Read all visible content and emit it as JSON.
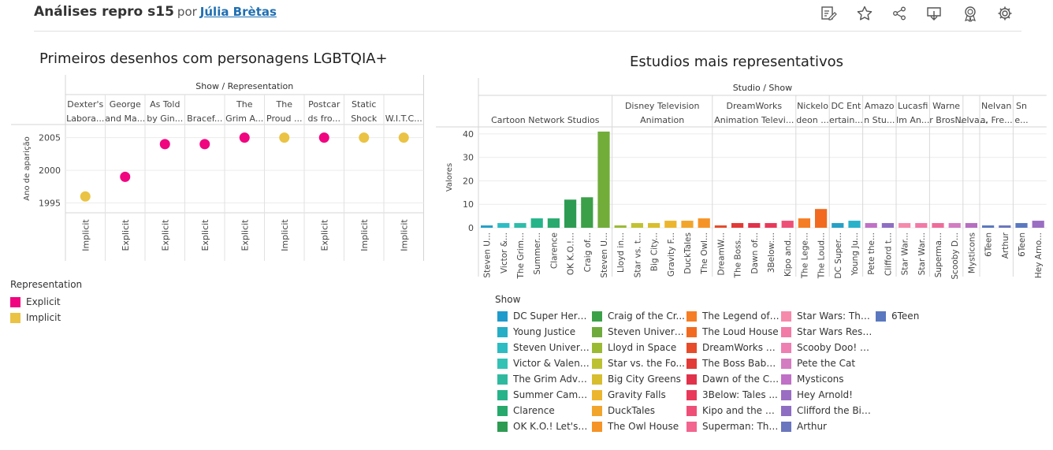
{
  "header": {
    "title": "Análises repro s15",
    "by": "por",
    "author": "Júlia Brètas"
  },
  "toolbar": {
    "icons": [
      "edit-icon",
      "star-icon",
      "share-icon",
      "download-icon",
      "badge-icon",
      "settings-icon"
    ]
  },
  "chart_data": [
    {
      "type": "scatter",
      "title": "Primeiros desenhos com personagens LGBTQIA+",
      "column_header": "Show / Representation",
      "ylabel": "Ano de aparição",
      "ylim": [
        1993.5,
        2007
      ],
      "yticks": [
        1995,
        2000,
        2005
      ],
      "grid": true,
      "columns": [
        {
          "show": [
            "Dexter's",
            "Labora..."
          ],
          "representation": "Implicit",
          "year": 1996
        },
        {
          "show": [
            "George",
            "and Ma..."
          ],
          "representation": "Explicit",
          "year": 1999
        },
        {
          "show": [
            "As Told",
            "by Gin..."
          ],
          "representation": "Explicit",
          "year": 2004
        },
        {
          "show": [
            "",
            "Bracef..."
          ],
          "representation": "Explicit",
          "year": 2004
        },
        {
          "show": [
            "The",
            "Grim A..."
          ],
          "representation": "Explicit",
          "year": 2005
        },
        {
          "show": [
            "The",
            "Proud ..."
          ],
          "representation": "Implicit",
          "year": 2005
        },
        {
          "show": [
            "Postcar",
            "ds fro..."
          ],
          "representation": "Explicit",
          "year": 2005
        },
        {
          "show": [
            "Static",
            "Shock"
          ],
          "representation": "Implicit",
          "year": 2005
        },
        {
          "show": [
            "",
            "W.I.T.C..."
          ],
          "representation": "Implicit",
          "year": 2005
        }
      ],
      "legend": {
        "title": "Representation",
        "items": [
          {
            "label": "Explicit",
            "color": "#f0047f"
          },
          {
            "label": "Implicit",
            "color": "#eac344"
          }
        ]
      }
    },
    {
      "type": "bar",
      "title": "Estudios mais representativos",
      "column_header": "Studio / Show",
      "ylabel": "Valores",
      "ylim": [
        0,
        43
      ],
      "yticks": [
        0,
        10,
        20,
        30,
        40
      ],
      "studios": [
        {
          "lines": [
            "",
            "Cartoon Network Studios"
          ],
          "count": 8
        },
        {
          "lines": [
            "Disney Television",
            "Animation"
          ],
          "count": 6
        },
        {
          "lines": [
            "DreamWorks",
            "Animation Televi..."
          ],
          "count": 5
        },
        {
          "lines": [
            "Nickelo",
            "deon ..."
          ],
          "count": 2
        },
        {
          "lines": [
            "DC Ent",
            "ertain..."
          ],
          "count": 2
        },
        {
          "lines": [
            "Amazo",
            "n Stu..."
          ],
          "count": 2
        },
        {
          "lines": [
            "Lucasfi",
            "lm An..."
          ],
          "count": 2
        },
        {
          "lines": [
            "Warne",
            "r Bros..."
          ],
          "count": 2
        },
        {
          "lines": [
            "",
            "Nelva..."
          ],
          "count": 1
        },
        {
          "lines": [
            "Nelvan",
            "a, Fre..."
          ],
          "count": 2
        },
        {
          "lines": [
            "Sn",
            "e..."
          ],
          "count": 1
        }
      ],
      "bars": [
        {
          "label": "Steven U...",
          "value": 1,
          "color": "#26a0c6"
        },
        {
          "label": "Victor &...",
          "value": 2,
          "color": "#2dbdc4"
        },
        {
          "label": "The Grim...",
          "value": 2,
          "color": "#2fbca9"
        },
        {
          "label": "Summer...",
          "value": 4,
          "color": "#25b48a"
        },
        {
          "label": "Clarence",
          "value": 4,
          "color": "#2aaa6e"
        },
        {
          "label": "OK K.O.!...",
          "value": 12,
          "color": "#2e9b53"
        },
        {
          "label": "Craig of...",
          "value": 13,
          "color": "#3ca048"
        },
        {
          "label": "Steven U...",
          "value": 41,
          "color": "#72ad3a"
        },
        {
          "label": "Lloyd in...",
          "value": 1,
          "color": "#9bba34"
        },
        {
          "label": "Star vs. t...",
          "value": 2,
          "color": "#c1c231"
        },
        {
          "label": "Big City...",
          "value": 2,
          "color": "#d9be2e"
        },
        {
          "label": "Gravity F...",
          "value": 3,
          "color": "#ecb52e"
        },
        {
          "label": "DuckTales",
          "value": 3,
          "color": "#f2a52b"
        },
        {
          "label": "The Owl...",
          "value": 4,
          "color": "#f59327"
        },
        {
          "label": "DreamW...",
          "value": 1,
          "color": "#e64b2a"
        },
        {
          "label": "The Boss...",
          "value": 2,
          "color": "#e23a36"
        },
        {
          "label": "Dawn of...",
          "value": 2,
          "color": "#e0324a"
        },
        {
          "label": "3Below:...",
          "value": 2,
          "color": "#e8395a"
        },
        {
          "label": "Kipo and...",
          "value": 3,
          "color": "#ee4f77"
        },
        {
          "label": "The Lege...",
          "value": 4,
          "color": "#f57d24"
        },
        {
          "label": "The Loud...",
          "value": 8,
          "color": "#f16a1f"
        },
        {
          "label": "DC Super...",
          "value": 2,
          "color": "#26a0c6"
        },
        {
          "label": "Young Ju...",
          "value": 3,
          "color": "#29b1c9"
        },
        {
          "label": "Pete the...",
          "value": 2,
          "color": "#c070c6"
        },
        {
          "label": "Clifford t...",
          "value": 2,
          "color": "#8e6ec2"
        },
        {
          "label": "Star War...",
          "value": 2,
          "color": "#f58aac"
        },
        {
          "label": "Star War...",
          "value": 2,
          "color": "#f27aa6"
        },
        {
          "label": "Superma...",
          "value": 2,
          "color": "#ee6c9a"
        },
        {
          "label": "Scooby D...",
          "value": 2,
          "color": "#d37cc2"
        },
        {
          "label": "Mysticons",
          "value": 2,
          "color": "#b66ec0"
        },
        {
          "label": "6Teen",
          "value": 1,
          "color": "#5a78bf"
        },
        {
          "label": "Arthur",
          "value": 1,
          "color": "#6a76bd"
        },
        {
          "label": "6Teen",
          "value": 2,
          "color": "#5a78bf"
        },
        {
          "label": "Hey Arno...",
          "value": 3,
          "color": "#9a6ec2"
        }
      ],
      "legend": {
        "title": "Show",
        "columns": [
          [
            {
              "label": "DC Super Hero ...",
              "color": "#1f9bcb"
            },
            {
              "label": "Young Justice",
              "color": "#25aec6"
            },
            {
              "label": "Steven Univers...",
              "color": "#2cbcc2"
            },
            {
              "label": "Victor & Valenti...",
              "color": "#34c2b5"
            },
            {
              "label": "The Grim Adve...",
              "color": "#2fbaa0"
            },
            {
              "label": "Summer Camp ...",
              "color": "#27b389"
            },
            {
              "label": "Clarence",
              "color": "#26a96a"
            },
            {
              "label": "OK K.O.! Let's B...",
              "color": "#2e9b53"
            }
          ],
          [
            {
              "label": "Craig of the Cr...",
              "color": "#3ca048"
            },
            {
              "label": "Steven Universe",
              "color": "#6fab3c"
            },
            {
              "label": "Lloyd in Space",
              "color": "#9bba34"
            },
            {
              "label": "Star vs. the Fo...",
              "color": "#bcc132"
            },
            {
              "label": "Big City Greens",
              "color": "#d6be2f"
            },
            {
              "label": "Gravity Falls",
              "color": "#ecb52e"
            },
            {
              "label": "DuckTales",
              "color": "#f2a52b"
            },
            {
              "label": "The Owl House",
              "color": "#f59327"
            }
          ],
          [
            {
              "label": "The Legend of ...",
              "color": "#f57d24"
            },
            {
              "label": "The Loud House",
              "color": "#f16a1f"
            },
            {
              "label": "DreamWorks D...",
              "color": "#e64b2a"
            },
            {
              "label": "The Boss Baby:...",
              "color": "#e23a36"
            },
            {
              "label": "Dawn of the Cr...",
              "color": "#e0324a"
            },
            {
              "label": "3Below: Tales ...",
              "color": "#e8395a"
            },
            {
              "label": "Kipo and the A...",
              "color": "#ee4f77"
            },
            {
              "label": "Superman: The...",
              "color": "#f2658e"
            }
          ],
          [
            {
              "label": "Star Wars: The ...",
              "color": "#f58aac"
            },
            {
              "label": "Star Wars Resi...",
              "color": "#f27aa6"
            },
            {
              "label": "Scooby Doo! M...",
              "color": "#ee7fb3"
            },
            {
              "label": "Pete the Cat",
              "color": "#d37cc2"
            },
            {
              "label": "Mysticons",
              "color": "#c070c6"
            },
            {
              "label": "Hey Arnold!",
              "color": "#9a6ec2"
            },
            {
              "label": "Clifford the Big ...",
              "color": "#8e6ec2"
            },
            {
              "label": "Arthur",
              "color": "#6a76bd"
            }
          ],
          [
            {
              "label": "6Teen",
              "color": "#5a78bf"
            }
          ]
        ]
      }
    }
  ]
}
